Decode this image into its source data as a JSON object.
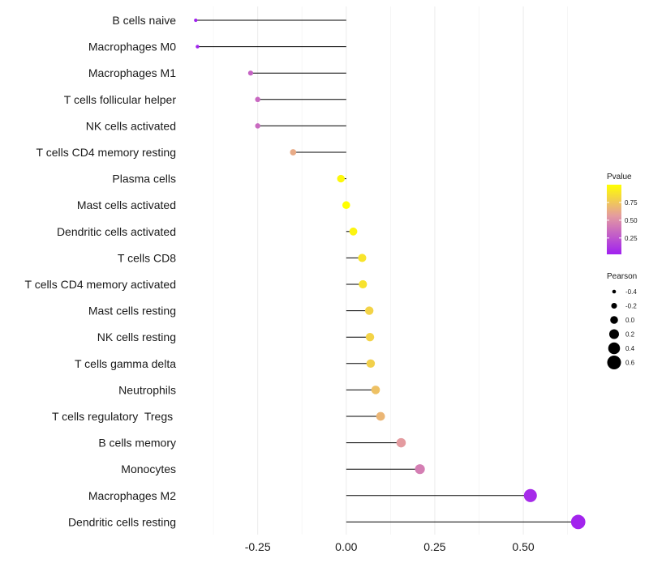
{
  "chart_data": {
    "type": "lollipop",
    "title": "",
    "xlabel": "",
    "ylabel": "",
    "xlim": [
      -0.46,
      0.69
    ],
    "x_ticks": [
      -0.25,
      0.0,
      0.25,
      0.5
    ],
    "x_tick_labels": [
      "-0.25",
      "0.00",
      "0.25",
      "0.50"
    ],
    "grid": true,
    "categories": [
      "B cells naive",
      "Macrophages M0",
      "Macrophages M1",
      "T cells follicular helper",
      "NK cells activated",
      "T cells CD4 memory resting",
      "Plasma cells",
      "Mast cells activated",
      "Dendritic cells activated",
      "T cells CD8",
      "T cells CD4 memory activated",
      "Mast cells resting",
      "NK cells resting",
      "T cells gamma delta",
      "Neutrophils",
      "T cells regulatory  Tregs ",
      "B cells memory",
      "Monocytes",
      "Macrophages M2",
      "Dendritic cells resting"
    ],
    "pearson": [
      -0.425,
      -0.42,
      -0.27,
      -0.25,
      -0.25,
      -0.15,
      -0.015,
      0.0,
      0.02,
      0.045,
      0.047,
      0.065,
      0.067,
      0.069,
      0.083,
      0.097,
      0.155,
      0.208,
      0.52,
      0.655
    ],
    "pvalue": [
      0.01,
      0.01,
      0.3,
      0.32,
      0.33,
      0.62,
      0.97,
      1.0,
      0.95,
      0.88,
      0.87,
      0.8,
      0.8,
      0.79,
      0.72,
      0.67,
      0.55,
      0.42,
      0.05,
      0.02
    ],
    "color_legend": {
      "title": "Pvalue",
      "ticks": [
        0.25,
        0.5,
        0.75
      ],
      "tick_labels": [
        "0.25",
        "0.50",
        "0.75"
      ],
      "low_color": "#a020f0",
      "mid_color": "#e49ba0",
      "high_color": "#ffff00",
      "placement": "right"
    },
    "size_legend": {
      "title": "Pearson",
      "values": [
        -0.4,
        -0.2,
        0.0,
        0.2,
        0.4,
        0.6
      ],
      "labels": [
        "-0.4",
        "-0.2",
        "0.0",
        "0.2",
        "0.4",
        "0.6"
      ],
      "placement": "right"
    }
  }
}
